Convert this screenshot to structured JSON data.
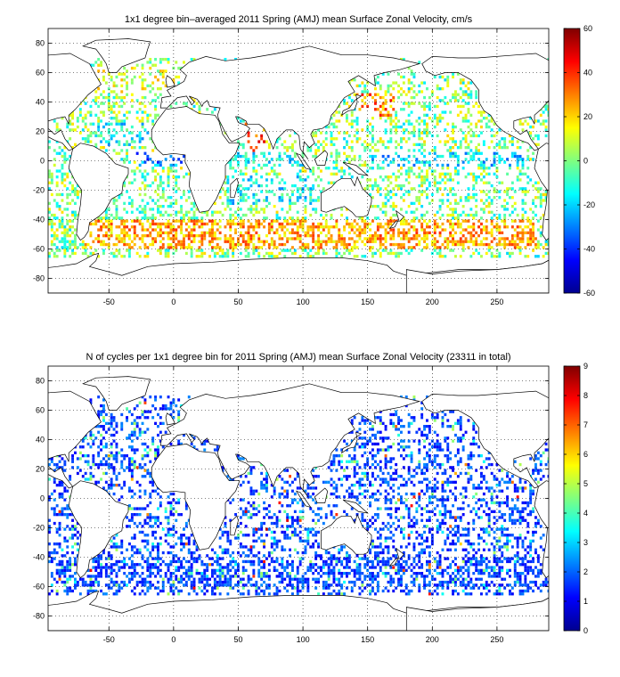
{
  "chart_data": [
    {
      "type": "heatmap",
      "title": "1x1 degree bin–averaged 2011 Spring (AMJ) mean Surface Zonal Velocity, cm/s",
      "xlim": [
        -97,
        290
      ],
      "ylim": [
        -90,
        90
      ],
      "xticks": [
        -50,
        0,
        50,
        100,
        150,
        200,
        250
      ],
      "yticks": [
        -80,
        -60,
        -40,
        -20,
        0,
        20,
        40,
        60,
        80
      ],
      "grid": true,
      "colorbar": {
        "min": -60,
        "max": 60,
        "ticks": [
          -60,
          -40,
          -20,
          0,
          20,
          40,
          60
        ],
        "colormap": "jet"
      },
      "pattern_bands": [
        {
          "lat": [
            45,
            65
          ],
          "lon": [
            -60,
            0
          ],
          "value": 10
        },
        {
          "lat": [
            -5,
            5
          ],
          "lon": [
            -30,
            20
          ],
          "value": -30
        },
        {
          "lat": [
            -5,
            5
          ],
          "lon": [
            40,
            100
          ],
          "value": -15
        },
        {
          "lat": [
            -5,
            5
          ],
          "lon": [
            150,
            270
          ],
          "value": -20
        },
        {
          "lat": [
            -60,
            -40
          ],
          "lon": [
            -70,
            280
          ],
          "value": 25
        },
        {
          "lat": [
            -30,
            -10
          ],
          "lon": [
            40,
            110
          ],
          "value": -15
        },
        {
          "lat": [
            30,
            45
          ],
          "lon": [
            140,
            170
          ],
          "value": 30
        },
        {
          "lat": [
            10,
            25
          ],
          "lon": [
            -60,
            -20
          ],
          "value": -15
        },
        {
          "lat": [
            -40,
            -20
          ],
          "lon": [
            -50,
            20
          ],
          "value": -5
        },
        {
          "lat": [
            5,
            25
          ],
          "lon": [
            55,
            70
          ],
          "value": 35
        }
      ]
    },
    {
      "type": "heatmap",
      "title": "N of cycles per 1x1 degree bin for 2011 Spring (AMJ) mean Surface Zonal Velocity (23311 in total)",
      "xlim": [
        -97,
        290
      ],
      "ylim": [
        -90,
        90
      ],
      "xticks": [
        -50,
        0,
        50,
        100,
        150,
        200,
        250
      ],
      "yticks": [
        -80,
        -60,
        -40,
        -20,
        0,
        20,
        40,
        60,
        80
      ],
      "grid": true,
      "colorbar": {
        "min": 0,
        "max": 9,
        "ticks": [
          0,
          1,
          2,
          3,
          4,
          5,
          6,
          7,
          8,
          9
        ],
        "colormap": "jet"
      },
      "total_cycles": 23311,
      "typical_value": 1.5
    }
  ]
}
